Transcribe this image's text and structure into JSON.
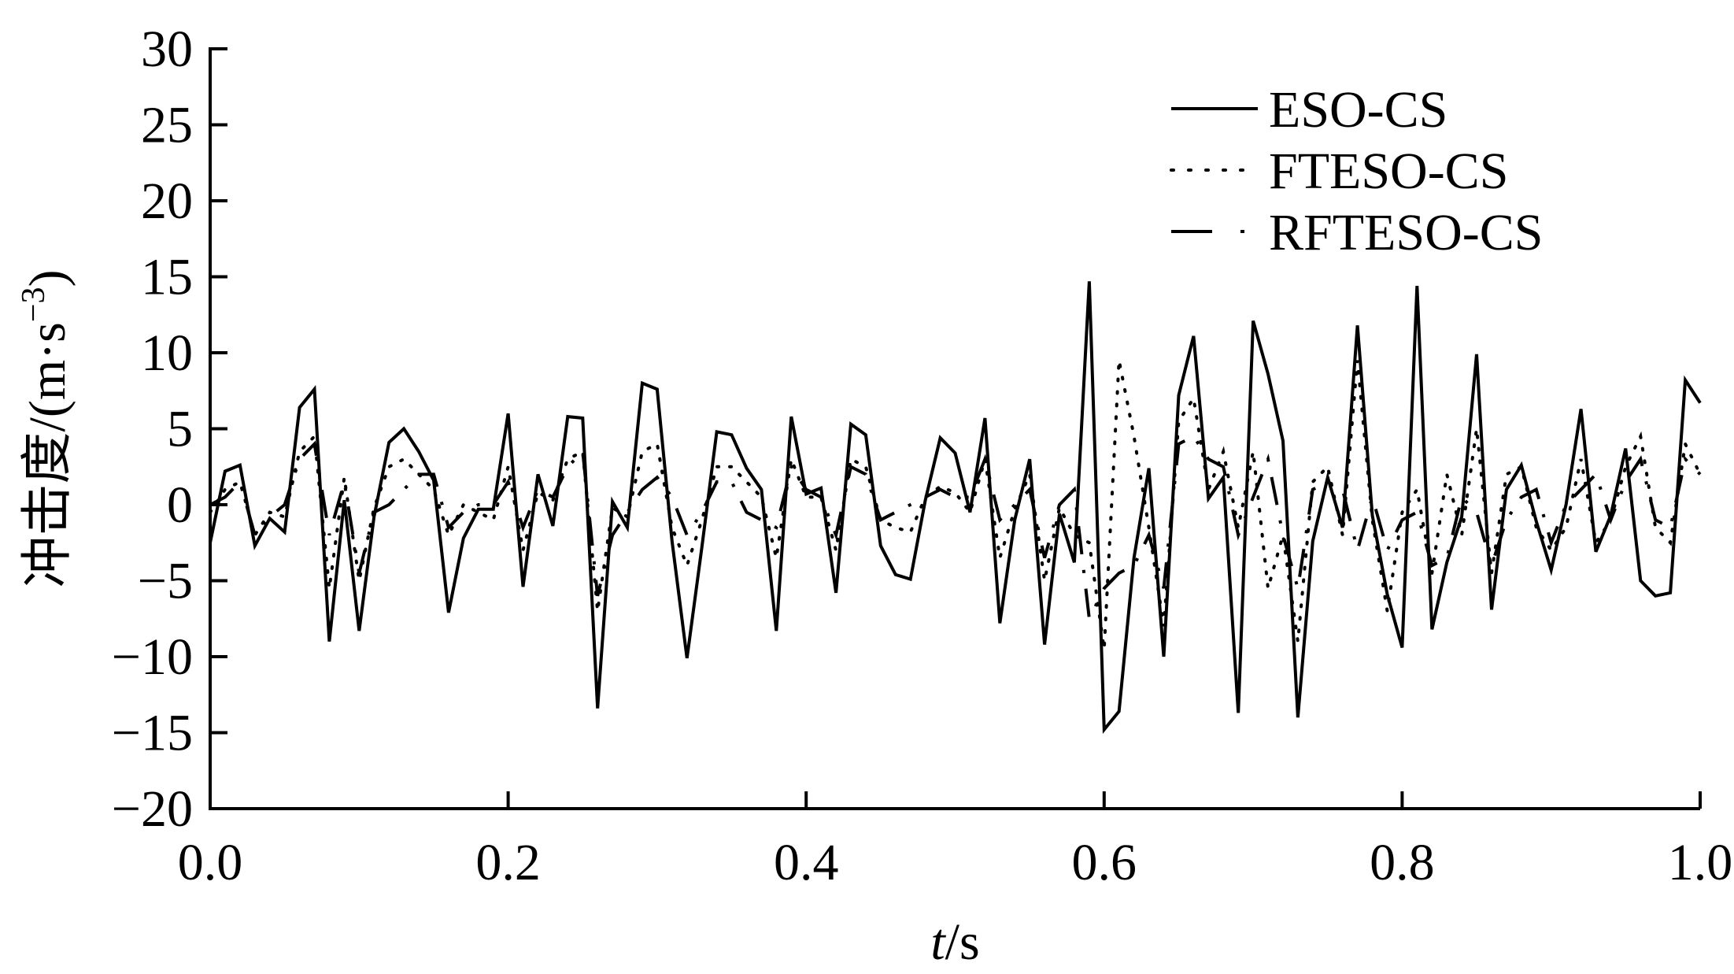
{
  "chart_data": {
    "type": "line",
    "xlabel_italic": "t",
    "xlabel_unit": "/s",
    "ylabel": "冲击度/(m·s",
    "ylabel_sup": "−3",
    "ylabel_close": ")",
    "xlim": [
      0.0,
      1.0
    ],
    "ylim": [
      -20,
      30
    ],
    "xticks": [
      0.0,
      0.2,
      0.4,
      0.6,
      0.8,
      1.0
    ],
    "xtick_labels": [
      "0.0",
      "0.2",
      "0.4",
      "0.6",
      "0.8",
      "1.0"
    ],
    "yticks": [
      -20,
      -15,
      -10,
      -5,
      0,
      5,
      10,
      15,
      20,
      25,
      30
    ],
    "ytick_labels": [
      "−20",
      "−15",
      "−10",
      "−5",
      "0",
      "5",
      "10",
      "15",
      "20",
      "25",
      "30"
    ],
    "grid": false,
    "legend_position": "top-right",
    "x": [
      0.0,
      0.01,
      0.02,
      0.03,
      0.04,
      0.05,
      0.06,
      0.07,
      0.08,
      0.09,
      0.1,
      0.11,
      0.12,
      0.13,
      0.14,
      0.15,
      0.16,
      0.17,
      0.18,
      0.19,
      0.2,
      0.21,
      0.22,
      0.23,
      0.24,
      0.25,
      0.26,
      0.27,
      0.28,
      0.29,
      0.3,
      0.31,
      0.32,
      0.33,
      0.34,
      0.35,
      0.36,
      0.37,
      0.38,
      0.39,
      0.4,
      0.41,
      0.42,
      0.43,
      0.44,
      0.45,
      0.46,
      0.47,
      0.48,
      0.49,
      0.5,
      0.51,
      0.52,
      0.53,
      0.54,
      0.55,
      0.56,
      0.57,
      0.58,
      0.59,
      0.6,
      0.61,
      0.62,
      0.63,
      0.64,
      0.65,
      0.66,
      0.67,
      0.68,
      0.69,
      0.7,
      0.71,
      0.72,
      0.73,
      0.74,
      0.75,
      0.76,
      0.77,
      0.78,
      0.79,
      0.8,
      0.81,
      0.82,
      0.83,
      0.84,
      0.85,
      0.86,
      0.87,
      0.88,
      0.89,
      0.9,
      0.91,
      0.92,
      0.93,
      0.94,
      0.95,
      0.96,
      0.97,
      0.98,
      0.99,
      1.0
    ],
    "series": [
      {
        "name": "ESO-CS",
        "style": "solid",
        "color": "#000000",
        "values": [
          -2.5,
          2.2,
          2.6,
          -2.7,
          -0.9,
          -1.8,
          6.4,
          7.6,
          -9.0,
          0.3,
          -8.3,
          -0.8,
          4.1,
          5.0,
          3.5,
          1.6,
          -7.1,
          -2.2,
          -0.3,
          -0.3,
          6.0,
          -5.4,
          2.0,
          -1.4,
          5.8,
          5.7,
          -13.4,
          0.2,
          -1.5,
          8.0,
          7.6,
          -2.4,
          -10.1,
          -2.8,
          4.8,
          4.6,
          2.4,
          1.0,
          -8.3,
          5.8,
          0.7,
          1.1,
          -5.8,
          5.3,
          4.6,
          -2.7,
          -4.6,
          -4.9,
          0.3,
          4.4,
          3.4,
          -0.5,
          5.7,
          -7.8,
          -1.0,
          3.0,
          -9.2,
          -0.6,
          -3.8,
          14.7,
          -14.8,
          -13.6,
          -3.5,
          2.4,
          -10.0,
          7.2,
          11.1,
          0.4,
          1.8,
          -13.7,
          12.1,
          8.6,
          4.2,
          -14.0,
          -2.4,
          1.8,
          -1.5,
          11.8,
          -0.7,
          -5.9,
          -9.4,
          14.4,
          -8.2,
          -3.8,
          -0.8,
          9.9,
          -6.9,
          1.0,
          2.6,
          -1.1,
          -4.3,
          0.0,
          6.3,
          -3.1,
          -0.7,
          3.7,
          -5.0,
          -6.0,
          -5.8,
          8.2,
          6.7
        ]
      },
      {
        "name": "FTESO-CS",
        "style": "dotted",
        "color": "#000000",
        "values": [
          -0.5,
          1.0,
          1.5,
          -2.0,
          -0.5,
          -0.8,
          3.5,
          4.5,
          -5.5,
          1.8,
          -5.0,
          -0.2,
          2.5,
          3.0,
          2.0,
          1.0,
          -2.0,
          0.0,
          -0.5,
          -1.0,
          2.5,
          -3.0,
          0.8,
          0.3,
          3.0,
          3.5,
          -7.0,
          -0.2,
          -0.8,
          3.5,
          4.0,
          -1.5,
          -4.0,
          -1.0,
          2.5,
          2.5,
          1.5,
          0.5,
          -3.5,
          3.0,
          0.5,
          0.5,
          -3.0,
          3.0,
          2.5,
          -1.0,
          -1.5,
          -1.8,
          0.5,
          1.2,
          0.8,
          -0.5,
          3.0,
          -3.5,
          -0.3,
          2.0,
          -5.0,
          -0.2,
          -2.0,
          -2.5,
          -9.5,
          9.5,
          4.5,
          -1.5,
          -8.0,
          5.5,
          7.0,
          1.0,
          3.5,
          -1.5,
          3.5,
          -5.5,
          -2.0,
          -9.0,
          1.5,
          2.5,
          -2.0,
          9.5,
          -1.0,
          -7.0,
          -0.5,
          1.0,
          -4.5,
          2.0,
          -2.0,
          5.0,
          -4.5,
          2.0,
          2.5,
          -1.5,
          -3.0,
          -1.5,
          3.0,
          -2.5,
          -1.0,
          2.5,
          4.5,
          -1.5,
          -2.5,
          4.0,
          2.0
        ]
      },
      {
        "name": "RFTESO-CS",
        "style": "dashed",
        "color": "#000000",
        "values": [
          0.0,
          0.5,
          1.5,
          -2.0,
          -0.8,
          0.0,
          3.0,
          4.0,
          -2.0,
          1.5,
          -4.5,
          -0.5,
          0.0,
          1.0,
          2.0,
          2.0,
          -1.5,
          -0.5,
          0.0,
          0.0,
          1.5,
          -1.5,
          1.0,
          0.5,
          2.5,
          3.5,
          -6.0,
          -2.0,
          -0.5,
          1.0,
          1.8,
          0.5,
          -2.0,
          -0.5,
          1.5,
          1.5,
          -0.5,
          -1.0,
          -1.5,
          2.5,
          1.0,
          0.5,
          -2.0,
          2.5,
          2.0,
          -1.0,
          -0.5,
          0.0,
          0.5,
          1.0,
          0.5,
          0.5,
          3.0,
          -1.0,
          0.0,
          1.0,
          -3.5,
          0.0,
          1.0,
          -7.5,
          -5.5,
          -4.5,
          -4.0,
          -2.0,
          -5.5,
          4.0,
          4.5,
          3.0,
          2.5,
          -2.0,
          0.5,
          3.0,
          -2.0,
          -5.5,
          1.0,
          1.5,
          1.0,
          -3.0,
          0.5,
          -3.0,
          -1.0,
          -0.5,
          -4.0,
          -3.5,
          0.5,
          -0.5,
          -4.0,
          -1.0,
          0.5,
          1.0,
          -2.5,
          0.0,
          1.0,
          2.0,
          -1.0,
          1.5,
          3.0,
          -1.0,
          -1.5,
          3.0,
          2.0
        ]
      }
    ]
  }
}
